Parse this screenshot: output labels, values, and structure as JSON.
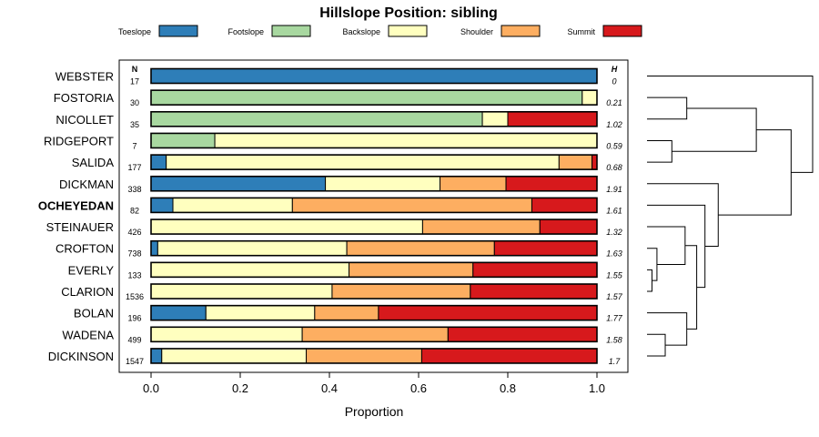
{
  "chart_data": {
    "type": "bar",
    "stacked": "proportion",
    "orientation": "horizontal",
    "title": "Hillslope Position: sibling",
    "xlabel": "Proportion",
    "ylabel": "",
    "xlim": [
      0,
      1
    ],
    "x_ticks": [
      "0.0",
      "0.2",
      "0.4",
      "0.6",
      "0.8",
      "1.0"
    ],
    "n_header": "N",
    "h_header": "H",
    "highlight": "OCHEYEDAN",
    "legend": [
      {
        "name": "Toeslope",
        "color": "#2e7eb8"
      },
      {
        "name": "Footslope",
        "color": "#a8d8a0"
      },
      {
        "name": "Backslope",
        "color": "#ffffbf"
      },
      {
        "name": "Shoulder",
        "color": "#fdae61"
      },
      {
        "name": "Summit",
        "color": "#d7191c"
      }
    ],
    "categories": [
      "WEBSTER",
      "FOSTORIA",
      "NICOLLET",
      "RIDGEPORT",
      "SALIDA",
      "DICKMAN",
      "OCHEYEDAN",
      "STEINAUER",
      "CROFTON",
      "EVERLY",
      "CLARION",
      "BOLAN",
      "WADENA",
      "DICKINSON"
    ],
    "n": [
      "17",
      "30",
      "35",
      "7",
      "177",
      "338",
      "82",
      "426",
      "738",
      "133",
      "1536",
      "196",
      "499",
      "1547"
    ],
    "h": [
      "0",
      "0.21",
      "1.02",
      "0.59",
      "0.68",
      "1.91",
      "1.61",
      "1.32",
      "1.63",
      "1.55",
      "1.57",
      "1.77",
      "1.58",
      "1.7"
    ],
    "series": [
      {
        "name": "Toeslope",
        "values": [
          1.0,
          0,
          0,
          0,
          0.034,
          0.391,
          0.049,
          0,
          0.015,
          0,
          0,
          0.123,
          0,
          0.024
        ]
      },
      {
        "name": "Footslope",
        "values": [
          0,
          0.967,
          0.743,
          0.143,
          0,
          0,
          0,
          0,
          0,
          0,
          0,
          0,
          0,
          0
        ]
      },
      {
        "name": "Backslope",
        "values": [
          0,
          0.033,
          0.057,
          0.857,
          0.881,
          0.257,
          0.268,
          0.609,
          0.424,
          0.444,
          0.406,
          0.244,
          0.339,
          0.324
        ]
      },
      {
        "name": "Shoulder",
        "values": [
          0,
          0,
          0,
          0,
          0.074,
          0.148,
          0.537,
          0.263,
          0.331,
          0.278,
          0.31,
          0.143,
          0.327,
          0.259
        ]
      },
      {
        "name": "Summit",
        "values": [
          0,
          0,
          0.2,
          0,
          0.011,
          0.204,
          0.146,
          0.128,
          0.23,
          0.278,
          0.284,
          0.49,
          0.334,
          0.393
        ]
      }
    ],
    "dendrogram": {
      "type": "hierarchical clustering",
      "leaf_order": [
        "WEBSTER",
        "FOSTORIA",
        "NICOLLET",
        "RIDGEPORT",
        "SALIDA",
        "DICKMAN",
        "OCHEYEDAN",
        "STEINAUER",
        "CROFTON",
        "EVERLY",
        "CLARION",
        "BOLAN",
        "WADENA",
        "DICKINSON"
      ],
      "merge_heights": {
        "EVERLY+CLARION": 0.03,
        "WADENA+DICKINSON": 0.11,
        "CROFTON+(EVERLY,CLARION)": 0.06,
        "RIDGEPORT+SALIDA": 0.15,
        "FOSTORIA+NICOLLET": 0.24,
        "STEINAUER+(CROFTON,...)": 0.23,
        "BOLAN+(WADENA,DICKINSON)": 0.24,
        "(STEINAUER,...)+(BOLAN,...)": 0.3,
        "OCHEYEDAN+(STEINAUER,...)": 0.35,
        "(RIDGEPORT,SALIDA)+(FOSTORIA,NICOLLET)": 0.66,
        "DICKMAN+(OCHEYEDAN,...)": 0.43,
        "(DICKMAN,...)+(RIDGEPORT,...)": 0.87,
        "WEBSTER+(ALL)": 1.0
      }
    }
  }
}
